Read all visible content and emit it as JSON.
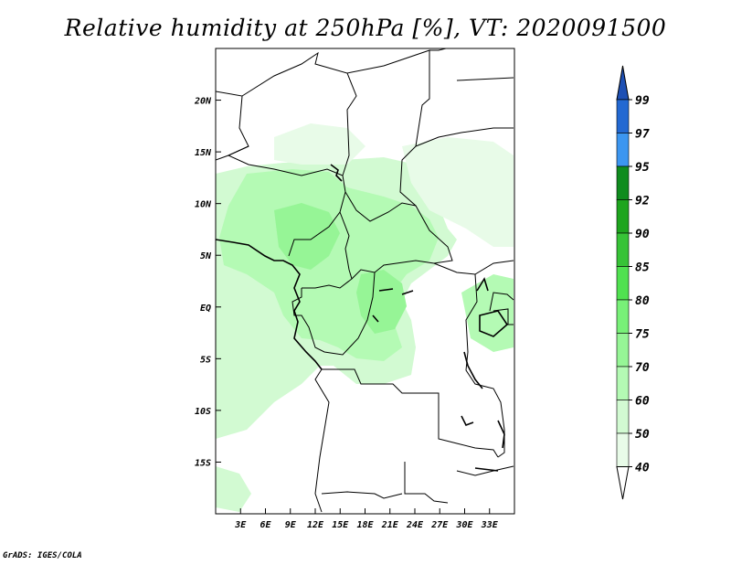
{
  "title": "Relative humidity at 250hPa [%], VT: 2020091500",
  "credit": "GrADS: IGES/COLA",
  "map": {
    "lon_range": [
      0,
      36
    ],
    "lat_range": [
      -20,
      25
    ],
    "x_ticks": [
      "3E",
      "6E",
      "9E",
      "12E",
      "15E",
      "18E",
      "21E",
      "24E",
      "27E",
      "30E",
      "33E"
    ],
    "x_tick_values": [
      3,
      6,
      9,
      12,
      15,
      18,
      21,
      24,
      27,
      30,
      33
    ],
    "y_ticks": [
      "20N",
      "15N",
      "10N",
      "5N",
      "EQ",
      "5S",
      "10S",
      "15S"
    ],
    "y_tick_values": [
      20,
      15,
      10,
      5,
      0,
      -5,
      -10,
      -15
    ]
  },
  "colorbar": {
    "levels": [
      "99",
      "97",
      "95",
      "92",
      "90",
      "85",
      "80",
      "75",
      "70",
      "60",
      "50",
      "40"
    ],
    "bands": [
      {
        "from": "95",
        "to": "97",
        "color": "#3c96f0"
      },
      {
        "from": "97",
        "to": "99",
        "color": "#2369d2"
      },
      {
        "from": "99",
        "to": "max",
        "color": "#1e50b4"
      },
      {
        "from": "92",
        "to": "95",
        "color": "#0f8c1e"
      },
      {
        "from": "90",
        "to": "92",
        "color": "#1ea51e"
      },
      {
        "from": "85",
        "to": "90",
        "color": "#37c337"
      },
      {
        "from": "80",
        "to": "85",
        "color": "#50e150"
      },
      {
        "from": "75",
        "to": "80",
        "color": "#78f078"
      },
      {
        "from": "70",
        "to": "75",
        "color": "#96f596"
      },
      {
        "from": "60",
        "to": "70",
        "color": "#b4fab4"
      },
      {
        "from": "50",
        "to": "60",
        "color": "#d2fad2"
      },
      {
        "from": "40",
        "to": "50",
        "color": "#e8fbe8"
      },
      {
        "from": "min",
        "to": "40",
        "color": "#ffffff"
      }
    ]
  }
}
